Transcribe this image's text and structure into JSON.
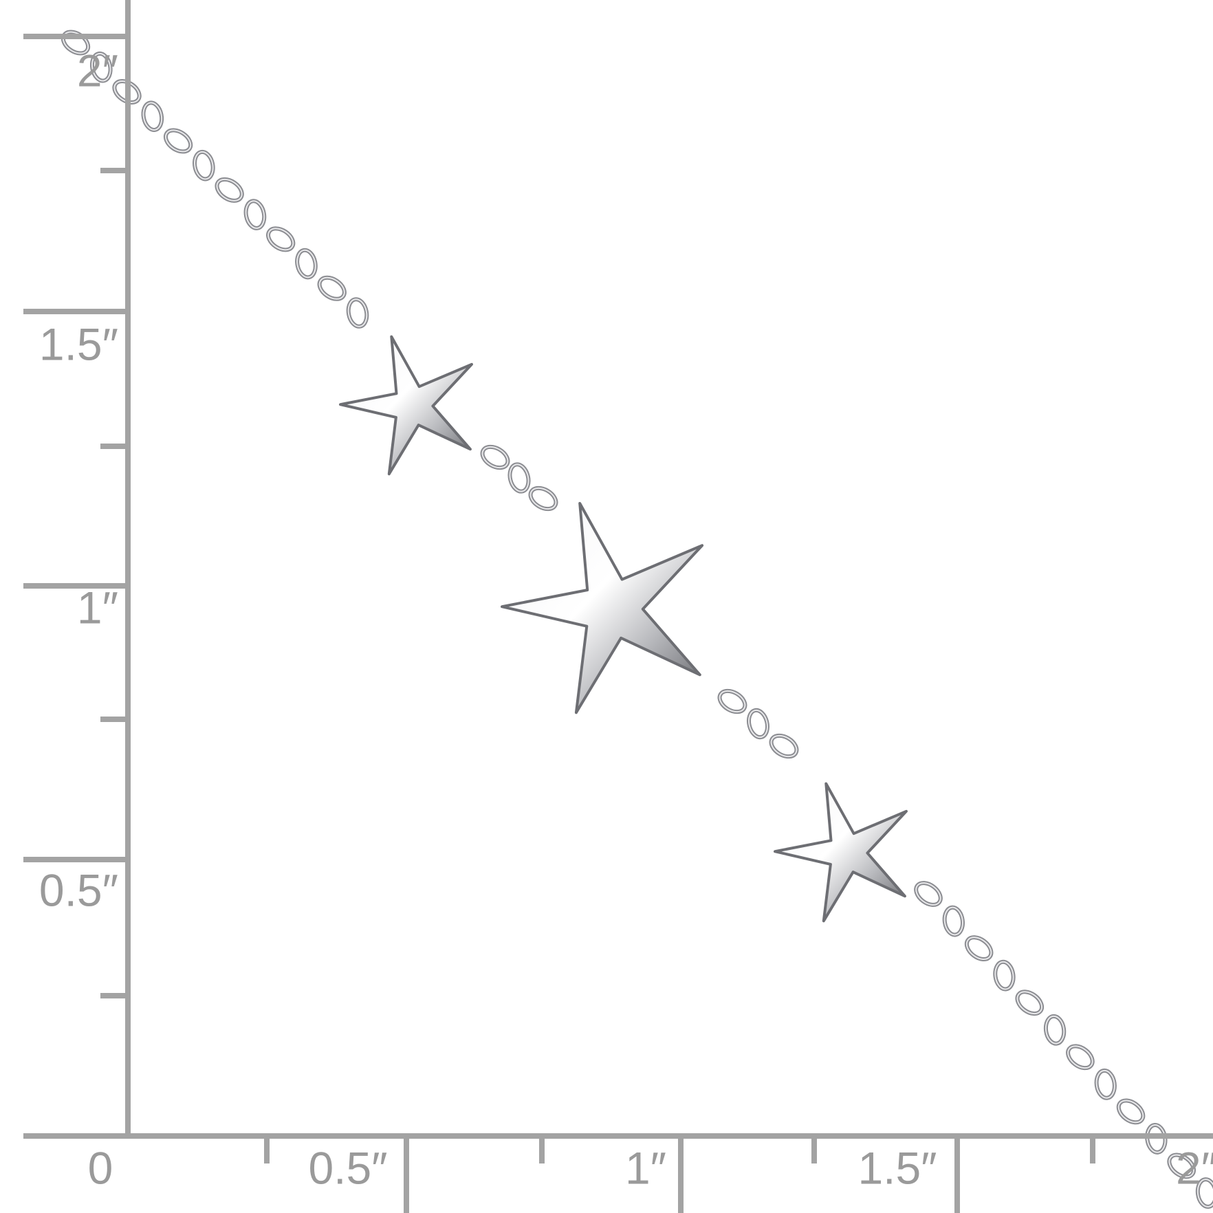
{
  "ruler": {
    "vertical_labels": [
      "2″",
      "1.5″",
      "1″",
      "0.5″"
    ],
    "horizontal_labels": [
      "0",
      "0.5″",
      "1″",
      "1.5″",
      "2″"
    ]
  }
}
